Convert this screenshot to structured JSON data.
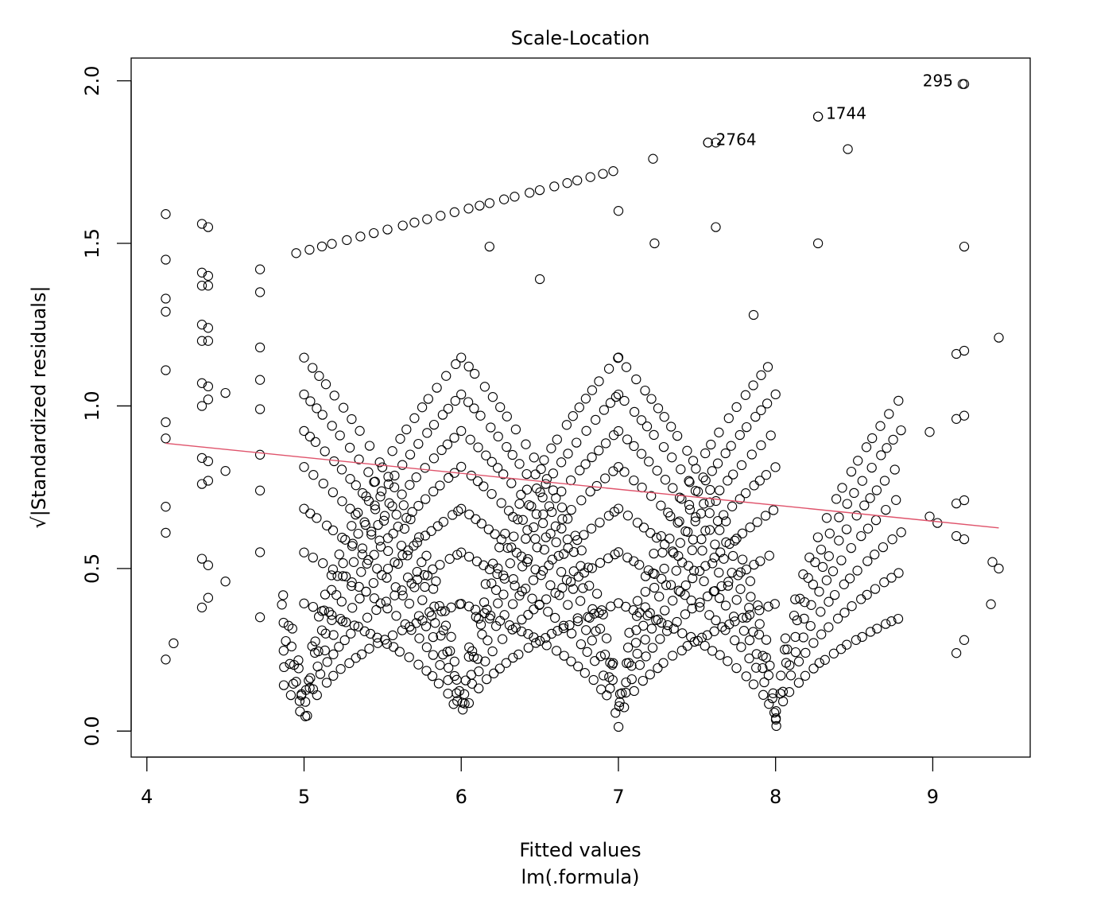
{
  "chart_data": {
    "type": "scatter",
    "title": "Scale-Location",
    "xlabel": "Fitted values",
    "xlabel_sub": "lm(.formula)",
    "ylabel": "√|Standardized residuals|",
    "xlim": [
      3.9,
      9.62
    ],
    "ylim": [
      -0.08,
      2.07
    ],
    "xticks": [
      "4",
      "5",
      "6",
      "7",
      "8",
      "9"
    ],
    "yticks": [
      "0.0",
      "0.5",
      "1.0",
      "1.5",
      "2.0"
    ],
    "marker": "open-circle",
    "point_color": "#000000",
    "smooth_color": "#DF536B",
    "smooth_line": [
      [
        4.12,
        0.885
      ],
      [
        9.42,
        0.625
      ]
    ],
    "points_pattern": {
      "description": "families of parabola-like curves sqrt(|k*(x - c)|) with vertices near integer fitted values",
      "vertices": [
        5.0,
        6.0,
        7.0,
        8.0
      ],
      "extra_columns_x": [
        4.12,
        4.35,
        4.39,
        4.72,
        9.15,
        9.2
      ]
    },
    "annotated_points": [
      {
        "label": "295",
        "x": 9.19,
        "y": 1.99
      },
      {
        "label": "1744",
        "x": 8.27,
        "y": 1.89
      },
      {
        "label": "2764",
        "x": 7.57,
        "y": 1.81
      }
    ],
    "grid": false
  }
}
